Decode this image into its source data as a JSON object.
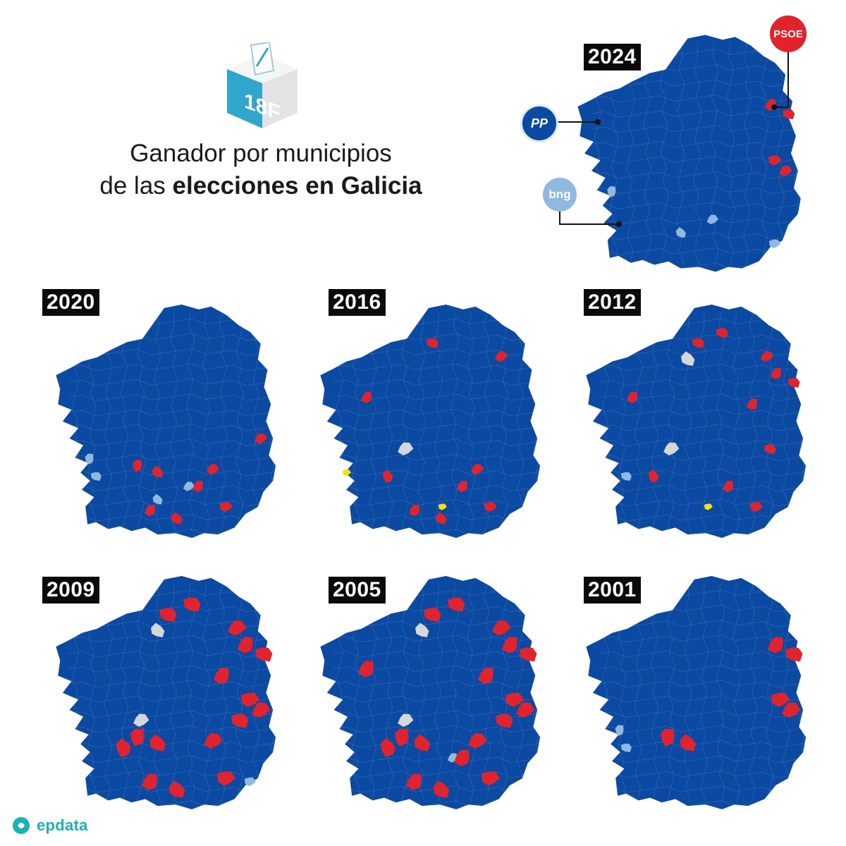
{
  "header": {
    "ballot_box_label": "18F",
    "title_line1": "Ganador por municipios",
    "title_line2_prefix": "de las ",
    "title_line2_bold": "elecciones en Galicia"
  },
  "colors": {
    "PP": "#0b4aa2",
    "PSOE": "#e3222b",
    "BNG": "#8fb9de",
    "Other": "#f2e500",
    "Tie_or_no_data": "#d7d7d7"
  },
  "legend": {
    "PP": "PP",
    "PSOE": "PSOE",
    "BNG": "bng"
  },
  "maps": [
    {
      "year": "2024",
      "winner_majority": "PP",
      "psoe_patches": 4,
      "bng_patches": 4,
      "other_patches": 0,
      "grey_patches": 0
    },
    {
      "year": "2020",
      "winner_majority": "PP",
      "psoe_patches": 8,
      "bng_patches": 4,
      "other_patches": 0,
      "grey_patches": 0
    },
    {
      "year": "2016",
      "winner_majority": "PP",
      "psoe_patches": 9,
      "bng_patches": 0,
      "other_patches": 2,
      "grey_patches": 1
    },
    {
      "year": "2012",
      "winner_majority": "PP",
      "psoe_patches": 11,
      "bng_patches": 1,
      "other_patches": 1,
      "grey_patches": 2
    },
    {
      "year": "2009",
      "winner_majority": "PP",
      "psoe_patches": 16,
      "bng_patches": 1,
      "other_patches": 0,
      "grey_patches": 2
    },
    {
      "year": "2005",
      "winner_majority": "PP",
      "psoe_patches": 18,
      "bng_patches": 1,
      "other_patches": 0,
      "grey_patches": 2
    },
    {
      "year": "2001",
      "winner_majority": "PP",
      "psoe_patches": 6,
      "bng_patches": 2,
      "other_patches": 0,
      "grey_patches": 0
    }
  ],
  "footer": {
    "brand": "epdata"
  }
}
